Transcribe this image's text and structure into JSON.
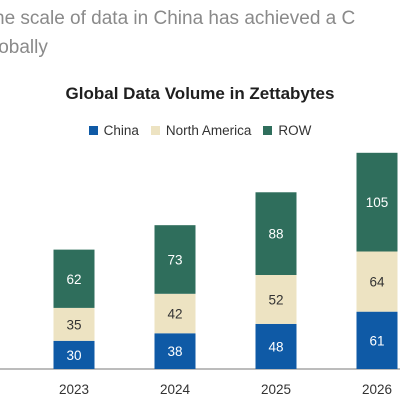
{
  "headline": {
    "line1": "he scale of data in China has achieved a C",
    "line2": "lobally"
  },
  "colors": {
    "china": "#0f5aa6",
    "north_america": "#ede3c2",
    "row": "#2f6e5c",
    "axis": "#7a7a7a"
  },
  "chart_data": {
    "type": "bar",
    "stacked": true,
    "title": "Global Data Volume in Zettabytes",
    "legend_position": "top",
    "categories": [
      "2023",
      "2024",
      "2025",
      "2026"
    ],
    "series": [
      {
        "name": "China",
        "values": [
          30,
          38,
          48,
          61
        ]
      },
      {
        "name": "North America",
        "values": [
          35,
          42,
          52,
          64
        ]
      },
      {
        "name": "ROW",
        "values": [
          62,
          73,
          88,
          105
        ]
      }
    ],
    "xlabel": "",
    "ylabel": "",
    "grid": false
  }
}
